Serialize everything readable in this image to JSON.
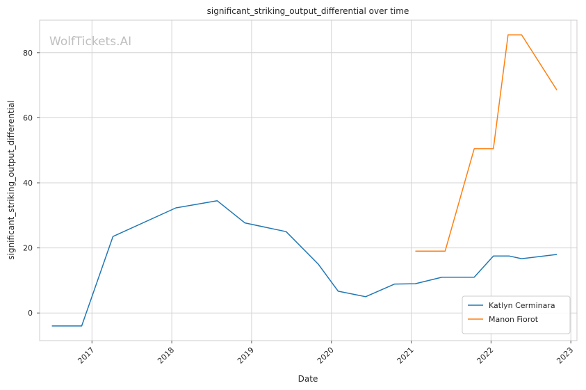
{
  "chart_data": {
    "type": "line",
    "title": "significant_striking_output_differential over time",
    "xlabel": "Date",
    "ylabel": "significant_striking_output_differential",
    "watermark": "WolfTickets.AI",
    "xlim": [
      "2016-05-06",
      "2023-01-29"
    ],
    "ylim": [
      -8.5,
      90
    ],
    "x_ticks": [
      "2017",
      "2018",
      "2019",
      "2020",
      "2021",
      "2022",
      "2023"
    ],
    "y_ticks": [
      0,
      20,
      40,
      60,
      80
    ],
    "grid": true,
    "legend_position": "lower-right",
    "series": [
      {
        "name": "Katlyn Cerminara",
        "color": "#1f77b4",
        "points": [
          {
            "x": "2016-07-01",
            "y": -4
          },
          {
            "x": "2016-11-15",
            "y": -4
          },
          {
            "x": "2017-04-07",
            "y": 23.5
          },
          {
            "x": "2018-01-20",
            "y": 32.3
          },
          {
            "x": "2018-07-28",
            "y": 34.5
          },
          {
            "x": "2018-12-01",
            "y": 27.7
          },
          {
            "x": "2019-06-08",
            "y": 25
          },
          {
            "x": "2019-11-02",
            "y": 15
          },
          {
            "x": "2020-02-01",
            "y": 6.7
          },
          {
            "x": "2020-06-06",
            "y": 5
          },
          {
            "x": "2020-10-17",
            "y": 8.9
          },
          {
            "x": "2021-01-20",
            "y": 9
          },
          {
            "x": "2021-05-22",
            "y": 11
          },
          {
            "x": "2021-10-16",
            "y": 11
          },
          {
            "x": "2022-01-12",
            "y": 17.5
          },
          {
            "x": "2022-03-26",
            "y": 17.5
          },
          {
            "x": "2022-05-21",
            "y": 16.7
          },
          {
            "x": "2022-10-29",
            "y": 18
          }
        ]
      },
      {
        "name": "Manon Fiorot",
        "color": "#ff7f0e",
        "points": [
          {
            "x": "2021-01-20",
            "y": 19
          },
          {
            "x": "2021-06-05",
            "y": 19
          },
          {
            "x": "2021-10-16",
            "y": 50.5
          },
          {
            "x": "2022-01-12",
            "y": 50.5
          },
          {
            "x": "2022-03-20",
            "y": 85.5
          },
          {
            "x": "2022-05-21",
            "y": 85.5
          },
          {
            "x": "2022-10-29",
            "y": 68.5
          }
        ]
      }
    ]
  }
}
